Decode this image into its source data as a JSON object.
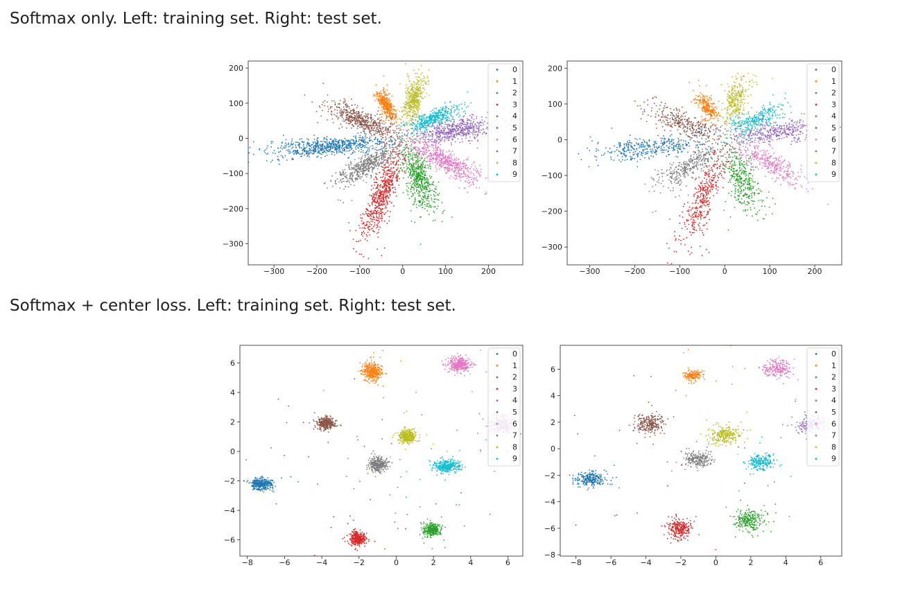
{
  "captions": {
    "softmax": "Softmax only. Left: training set. Right: test set.",
    "center": "Softmax + center loss. Left: training set. Right: test set."
  },
  "palette": [
    "#1f77b4",
    "#ff7f0e",
    "#2ca02c",
    "#d62728",
    "#9467bd",
    "#8c564b",
    "#e377c2",
    "#7f7f7f",
    "#bcbd22",
    "#17becf"
  ],
  "chart_data": [
    {
      "type": "scatter",
      "title": "",
      "xlabel": "",
      "ylabel": "",
      "xlim": [
        -360,
        280
      ],
      "ylim": [
        -360,
        220
      ],
      "xticks": [
        -300,
        -200,
        -100,
        0,
        100,
        200
      ],
      "xtick_labels": [
        "−300",
        "−200",
        "−100",
        "0",
        "100",
        "200"
      ],
      "yticks": [
        -300,
        -200,
        -100,
        0,
        100,
        200
      ],
      "ytick_labels": [
        "−300",
        "−200",
        "−100",
        "0",
        "100",
        "200"
      ],
      "legend": "top-right",
      "grid": false,
      "series": [
        {
          "name": "0",
          "center": [
            -170,
            -24
          ],
          "radius": [
            170,
            10
          ],
          "angle_deg": 186,
          "count": 700
        },
        {
          "name": "1",
          "center": [
            -38,
            95
          ],
          "radius": [
            55,
            6
          ],
          "angle_deg": 112,
          "count": 380
        },
        {
          "name": "2",
          "center": [
            38,
            -115
          ],
          "radius": [
            120,
            12
          ],
          "angle_deg": -76,
          "count": 600
        },
        {
          "name": "3",
          "center": [
            -48,
            -160
          ],
          "radius": [
            170,
            11
          ],
          "angle_deg": -107,
          "count": 650
        },
        {
          "name": "4",
          "center": [
            120,
            22
          ],
          "radius": [
            120,
            12
          ],
          "angle_deg": 9,
          "count": 600
        },
        {
          "name": "5",
          "center": [
            -95,
            50
          ],
          "radius": [
            110,
            11
          ],
          "angle_deg": 153,
          "count": 550
        },
        {
          "name": "6",
          "center": [
            100,
            -65
          ],
          "radius": [
            115,
            11
          ],
          "angle_deg": -35,
          "count": 550
        },
        {
          "name": "7",
          "center": [
            -82,
            -75
          ],
          "radius": [
            110,
            11
          ],
          "angle_deg": -140,
          "count": 550
        },
        {
          "name": "8",
          "center": [
            25,
            110
          ],
          "radius": [
            80,
            8
          ],
          "angle_deg": 79,
          "count": 450
        },
        {
          "name": "9",
          "center": [
            70,
            55
          ],
          "radius": [
            80,
            8
          ],
          "angle_deg": 32,
          "count": 450
        }
      ]
    },
    {
      "type": "scatter",
      "title": "",
      "xlabel": "",
      "ylabel": "",
      "xlim": [
        -350,
        260
      ],
      "ylim": [
        -350,
        220
      ],
      "xticks": [
        -300,
        -200,
        -100,
        0,
        100,
        200
      ],
      "xtick_labels": [
        "−300",
        "−200",
        "−100",
        "0",
        "100",
        "200"
      ],
      "yticks": [
        -300,
        -200,
        -100,
        0,
        100,
        200
      ],
      "ytick_labels": [
        "−300",
        "−200",
        "−100",
        "0",
        "100",
        "200"
      ],
      "legend": "top-right",
      "grid": false,
      "series": [
        {
          "name": "0",
          "center": [
            -160,
            -22
          ],
          "radius": [
            160,
            12
          ],
          "angle_deg": 187,
          "count": 380
        },
        {
          "name": "1",
          "center": [
            -38,
            90
          ],
          "radius": [
            50,
            7
          ],
          "angle_deg": 112,
          "count": 240
        },
        {
          "name": "2",
          "center": [
            40,
            -115
          ],
          "radius": [
            120,
            13
          ],
          "angle_deg": -76,
          "count": 380
        },
        {
          "name": "3",
          "center": [
            -48,
            -160
          ],
          "radius": [
            170,
            12
          ],
          "angle_deg": -107,
          "count": 400
        },
        {
          "name": "4",
          "center": [
            115,
            22
          ],
          "radius": [
            120,
            12
          ],
          "angle_deg": 9,
          "count": 380
        },
        {
          "name": "5",
          "center": [
            -90,
            45
          ],
          "radius": [
            110,
            12
          ],
          "angle_deg": 153,
          "count": 340
        },
        {
          "name": "6",
          "center": [
            100,
            -65
          ],
          "radius": [
            115,
            12
          ],
          "angle_deg": -35,
          "count": 340
        },
        {
          "name": "7",
          "center": [
            -80,
            -75
          ],
          "radius": [
            110,
            12
          ],
          "angle_deg": -140,
          "count": 340
        },
        {
          "name": "8",
          "center": [
            25,
            110
          ],
          "radius": [
            80,
            9
          ],
          "angle_deg": 79,
          "count": 300
        },
        {
          "name": "9",
          "center": [
            70,
            55
          ],
          "radius": [
            80,
            9
          ],
          "angle_deg": 32,
          "count": 300
        }
      ]
    },
    {
      "type": "scatter",
      "title": "",
      "xlabel": "",
      "ylabel": "",
      "xlim": [
        -8.4,
        6.8
      ],
      "ylim": [
        -7.1,
        7.2
      ],
      "xticks": [
        -8,
        -6,
        -4,
        -2,
        0,
        2,
        4,
        6
      ],
      "xtick_labels": [
        "−8",
        "−6",
        "−4",
        "−2",
        "0",
        "2",
        "4",
        "6"
      ],
      "yticks": [
        -6,
        -4,
        -2,
        0,
        2,
        4,
        6
      ],
      "ytick_labels": [
        "−6",
        "−4",
        "−2",
        "0",
        "2",
        "4",
        "6"
      ],
      "legend": "top-right",
      "grid": false,
      "series": [
        {
          "name": "0",
          "center": [
            -7.2,
            -2.2
          ],
          "radius": [
            0.3,
            0.2
          ],
          "count": 350
        },
        {
          "name": "1",
          "center": [
            -1.3,
            5.4
          ],
          "radius": [
            0.25,
            0.3
          ],
          "count": 350
        },
        {
          "name": "2",
          "center": [
            1.9,
            -5.3
          ],
          "radius": [
            0.22,
            0.22
          ],
          "count": 350
        },
        {
          "name": "3",
          "center": [
            -2.1,
            -5.9
          ],
          "radius": [
            0.22,
            0.24
          ],
          "count": 350
        },
        {
          "name": "4",
          "center": [
            5.7,
            1.8
          ],
          "radius": [
            0.35,
            0.3
          ],
          "count": 300
        },
        {
          "name": "5",
          "center": [
            -3.8,
            1.9
          ],
          "radius": [
            0.25,
            0.2
          ],
          "count": 350
        },
        {
          "name": "6",
          "center": [
            3.4,
            5.9
          ],
          "radius": [
            0.3,
            0.25
          ],
          "count": 350
        },
        {
          "name": "7",
          "center": [
            -1.0,
            -0.9
          ],
          "radius": [
            0.25,
            0.25
          ],
          "count": 350
        },
        {
          "name": "8",
          "center": [
            0.6,
            1.0
          ],
          "radius": [
            0.22,
            0.22
          ],
          "count": 350
        },
        {
          "name": "9",
          "center": [
            2.7,
            -1.0
          ],
          "radius": [
            0.35,
            0.2
          ],
          "count": 350
        }
      ]
    },
    {
      "type": "scatter",
      "title": "",
      "xlabel": "",
      "ylabel": "",
      "xlim": [
        -8.9,
        7.2
      ],
      "ylim": [
        -8.1,
        7.8
      ],
      "xticks": [
        -8,
        -6,
        -4,
        -2,
        0,
        2,
        4,
        6
      ],
      "xtick_labels": [
        "−8",
        "−6",
        "−4",
        "−2",
        "0",
        "2",
        "4",
        "6"
      ],
      "yticks": [
        -8,
        -6,
        -4,
        -2,
        0,
        2,
        4,
        6
      ],
      "ytick_labels": [
        "−8",
        "−6",
        "−4",
        "−2",
        "0",
        "2",
        "4",
        "6"
      ],
      "legend": "top-right",
      "grid": false,
      "series": [
        {
          "name": "0",
          "center": [
            -7.1,
            -2.3
          ],
          "radius": [
            0.45,
            0.28
          ],
          "count": 260
        },
        {
          "name": "1",
          "center": [
            -1.3,
            5.5
          ],
          "radius": [
            0.25,
            0.25
          ],
          "count": 160
        },
        {
          "name": "2",
          "center": [
            1.9,
            -5.4
          ],
          "radius": [
            0.4,
            0.4
          ],
          "count": 260
        },
        {
          "name": "3",
          "center": [
            -2.1,
            -6.0
          ],
          "radius": [
            0.35,
            0.38
          ],
          "count": 260
        },
        {
          "name": "4",
          "center": [
            5.5,
            1.8
          ],
          "radius": [
            0.45,
            0.35
          ],
          "count": 200
        },
        {
          "name": "5",
          "center": [
            -3.8,
            1.9
          ],
          "radius": [
            0.45,
            0.35
          ],
          "count": 260
        },
        {
          "name": "6",
          "center": [
            3.5,
            6.0
          ],
          "radius": [
            0.4,
            0.35
          ],
          "count": 220
        },
        {
          "name": "7",
          "center": [
            -1.0,
            -0.8
          ],
          "radius": [
            0.4,
            0.3
          ],
          "count": 240
        },
        {
          "name": "8",
          "center": [
            0.5,
            1.0
          ],
          "radius": [
            0.45,
            0.35
          ],
          "count": 260
        },
        {
          "name": "9",
          "center": [
            2.6,
            -1.0
          ],
          "radius": [
            0.4,
            0.3
          ],
          "count": 240
        }
      ]
    }
  ]
}
